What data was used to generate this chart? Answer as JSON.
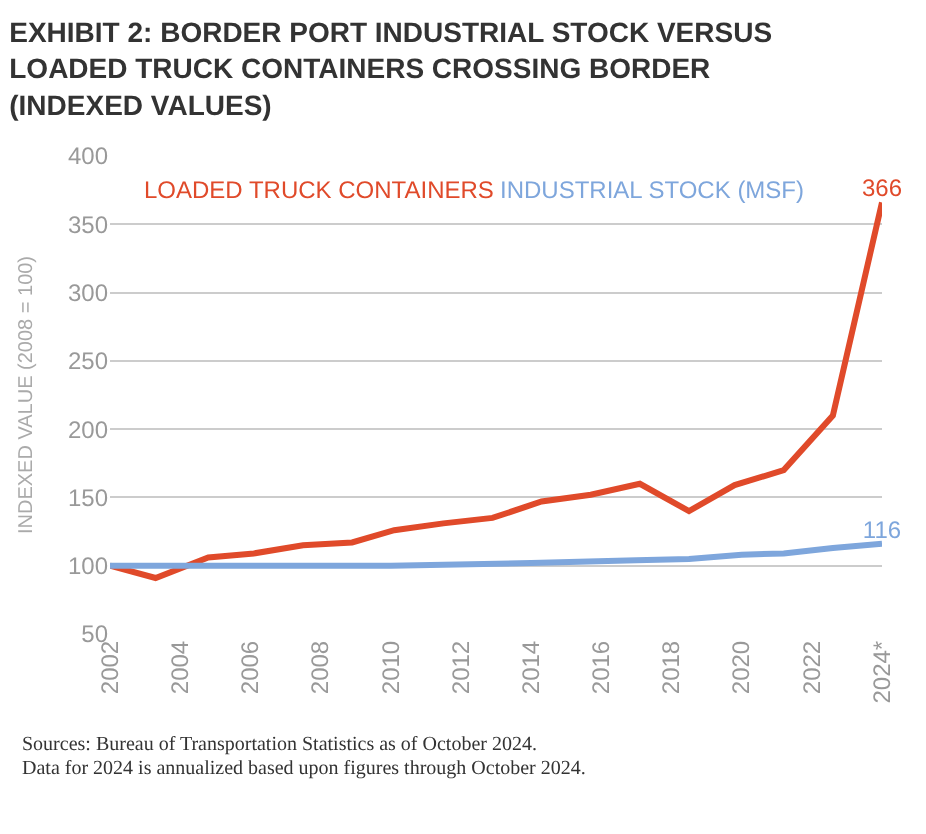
{
  "chart_data": {
    "type": "line",
    "title": "EXHIBIT 2: BORDER PORT INDUSTRIAL STOCK VERSUS\nLOADED TRUCK CONTAINERS CROSSING BORDER\n(INDEXED VALUES)",
    "ylabel": "INDEXED VALUE (2008 = 100)",
    "xlim": [
      2002,
      2024
    ],
    "xticks": [
      2002,
      2004,
      2006,
      2008,
      2010,
      2012,
      2014,
      2016,
      2018,
      2020,
      2022,
      {
        "value": 2024,
        "label": "2024*"
      }
    ],
    "ylim": [
      50,
      400
    ],
    "yticks": [
      50,
      100,
      150,
      200,
      250,
      300,
      350,
      400
    ],
    "grid": "y",
    "legend": false,
    "marker": "none",
    "line_style": "solid",
    "series": [
      {
        "name": "LOADED TRUCK CONTAINERS",
        "color": "#e04a2a",
        "x": [
          2002.0,
          2003.3,
          2004.8,
          2006.1,
          2007.5,
          2008.9,
          2010.1,
          2011.5,
          2012.9,
          2014.3,
          2015.7,
          2017.1,
          2018.5,
          2019.8,
          2021.2,
          2022.6,
          2024.0
        ],
        "values": [
          100,
          91,
          106,
          109,
          115,
          117,
          126,
          131,
          135,
          147,
          152,
          160,
          140,
          159,
          170,
          210,
          366
        ],
        "value_labels": [
          null,
          null,
          null,
          null,
          null,
          null,
          null,
          null,
          null,
          null,
          null,
          null,
          null,
          null,
          null,
          null,
          "366"
        ]
      },
      {
        "name": "INDUSTRIAL STOCK (MSF)",
        "color": "#7ea6dc",
        "x": [
          2002.0,
          2010.0,
          2014.0,
          2017.0,
          2018.5,
          2020.0,
          2021.2,
          2022.6,
          2024.0
        ],
        "values": [
          100,
          100,
          102,
          104,
          105,
          108,
          109,
          113,
          116
        ],
        "value_labels": [
          null,
          null,
          null,
          null,
          null,
          null,
          null,
          null,
          "116"
        ]
      }
    ],
    "annotations": [
      "Sources: Bureau of Transportation Statistics as of October 2024.",
      "Data for 2024 is annualized based upon figures through October 2024."
    ]
  }
}
